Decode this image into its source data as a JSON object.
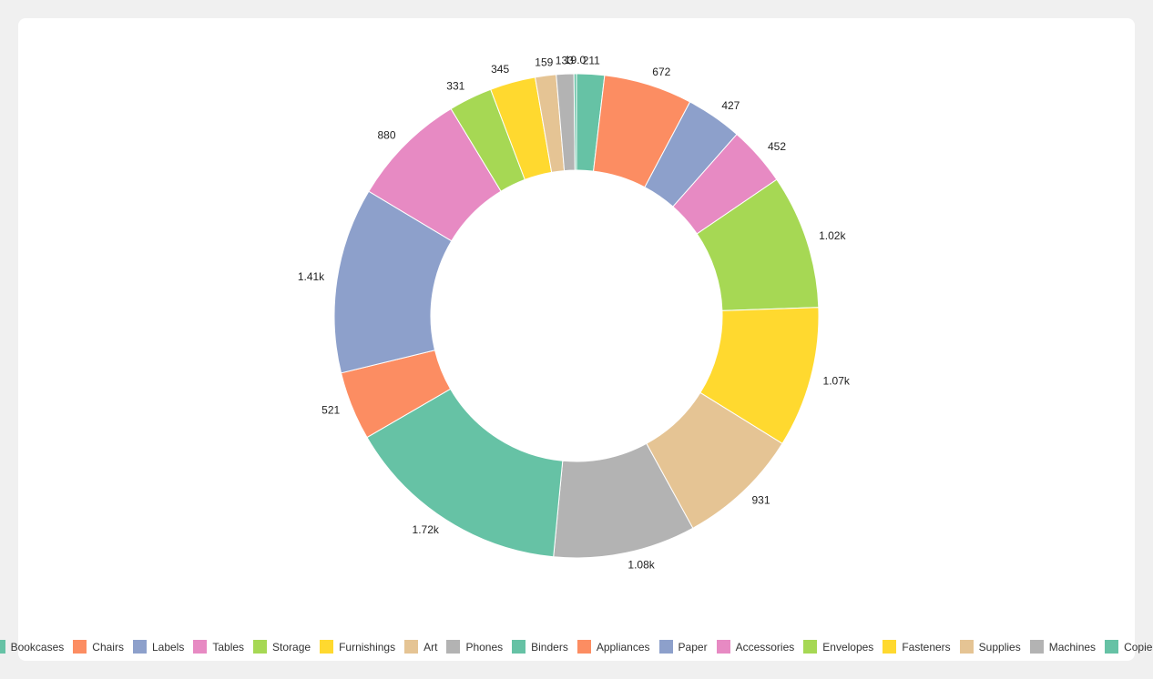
{
  "chart_data": {
    "type": "donut",
    "categories": [
      "Bookcases",
      "Chairs",
      "Labels",
      "Tables",
      "Storage",
      "Furnishings",
      "Art",
      "Phones",
      "Binders",
      "Appliances",
      "Paper",
      "Accessories",
      "Envelopes",
      "Fasteners",
      "Supplies",
      "Machines",
      "Copiers"
    ],
    "values": [
      211,
      672,
      427,
      452,
      1020,
      1070,
      931,
      1080,
      1720,
      521,
      1410,
      880,
      331,
      345,
      159,
      133,
      19
    ],
    "value_labels": [
      "211",
      "672",
      "427",
      "452",
      "1.02k",
      "1.07k",
      "931",
      "1.08k",
      "1.72k",
      "521",
      "1.41k",
      "880",
      "331",
      "345",
      "159",
      "133",
      "19.0"
    ],
    "colors": [
      "#66c2a5",
      "#fc8d62",
      "#8da0cb",
      "#e78ac3",
      "#a6d854",
      "#ffd92f",
      "#e5c494",
      "#b3b3b3",
      "#66c2a5",
      "#fc8d62",
      "#8da0cb",
      "#e78ac3",
      "#a6d854",
      "#ffd92f",
      "#e5c494",
      "#b3b3b3",
      "#66c2a5"
    ],
    "legend": "bottom"
  }
}
